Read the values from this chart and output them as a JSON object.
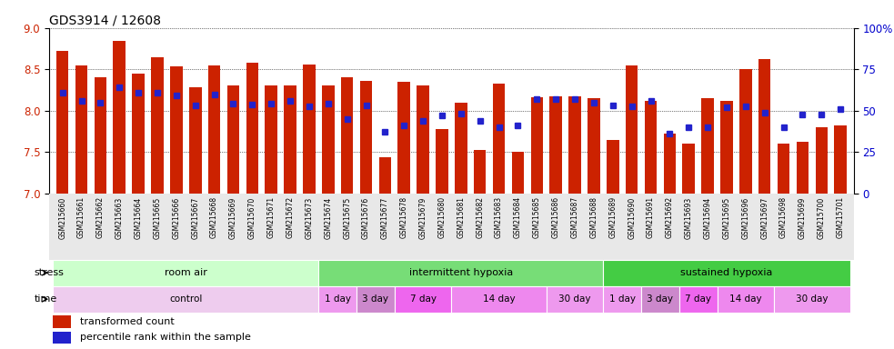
{
  "title": "GDS3914 / 12608",
  "samples": [
    "GSM215660",
    "GSM215661",
    "GSM215662",
    "GSM215663",
    "GSM215664",
    "GSM215665",
    "GSM215666",
    "GSM215667",
    "GSM215668",
    "GSM215669",
    "GSM215670",
    "GSM215671",
    "GSM215672",
    "GSM215673",
    "GSM215674",
    "GSM215675",
    "GSM215676",
    "GSM215677",
    "GSM215678",
    "GSM215679",
    "GSM215680",
    "GSM215681",
    "GSM215682",
    "GSM215683",
    "GSM215684",
    "GSM215685",
    "GSM215686",
    "GSM215687",
    "GSM215688",
    "GSM215689",
    "GSM215690",
    "GSM215691",
    "GSM215692",
    "GSM215693",
    "GSM215694",
    "GSM215695",
    "GSM215696",
    "GSM215697",
    "GSM215698",
    "GSM215699",
    "GSM215700",
    "GSM215701"
  ],
  "bar_values": [
    8.72,
    8.55,
    8.4,
    8.84,
    8.45,
    8.65,
    8.53,
    8.28,
    8.55,
    8.3,
    8.58,
    8.31,
    8.31,
    8.56,
    8.3,
    8.4,
    8.36,
    7.44,
    8.35,
    8.3,
    7.78,
    8.1,
    7.52,
    8.33,
    7.5,
    8.16,
    8.17,
    8.17,
    8.15,
    7.65,
    8.55,
    8.12,
    7.72,
    7.6,
    8.15,
    8.12,
    8.5,
    8.62,
    7.6,
    7.62,
    7.8,
    7.82
  ],
  "percentile_values": [
    8.22,
    8.12,
    8.1,
    8.28,
    8.22,
    8.22,
    8.18,
    8.06,
    8.2,
    8.08,
    8.07,
    8.08,
    8.12,
    8.05,
    8.08,
    7.9,
    8.06,
    7.74,
    7.82,
    7.88,
    7.94,
    7.96,
    7.88,
    7.8,
    7.82,
    8.14,
    8.14,
    8.14,
    8.1,
    8.06,
    8.05,
    8.12,
    7.72,
    7.8,
    7.8,
    8.04,
    8.05,
    7.98,
    7.8,
    7.95,
    7.95,
    8.02
  ],
  "ylim_left": [
    7.0,
    9.0
  ],
  "ylim_right": [
    0,
    100
  ],
  "yticks_left": [
    7.0,
    7.5,
    8.0,
    8.5,
    9.0
  ],
  "yticks_right": [
    0,
    25,
    50,
    75,
    100
  ],
  "ytick_labels_right": [
    "0",
    "25",
    "50",
    "75",
    "100%"
  ],
  "bar_color": "#cc2200",
  "dot_color": "#2222cc",
  "bar_bottom": 7.0,
  "stress_groups": [
    {
      "label": "room air",
      "start": 0,
      "end": 14,
      "color": "#ccffcc"
    },
    {
      "label": "intermittent hypoxia",
      "start": 14,
      "end": 29,
      "color": "#77dd77"
    },
    {
      "label": "sustained hypoxia",
      "start": 29,
      "end": 42,
      "color": "#44cc44"
    }
  ],
  "time_groups": [
    {
      "label": "control",
      "start": 0,
      "end": 14,
      "color": "#eeccee"
    },
    {
      "label": "1 day",
      "start": 14,
      "end": 16,
      "color": "#ee99ee"
    },
    {
      "label": "3 day",
      "start": 16,
      "end": 18,
      "color": "#cc88cc"
    },
    {
      "label": "7 day",
      "start": 18,
      "end": 21,
      "color": "#ee66ee"
    },
    {
      "label": "14 day",
      "start": 21,
      "end": 26,
      "color": "#ee88ee"
    },
    {
      "label": "30 day",
      "start": 26,
      "end": 29,
      "color": "#ee99ee"
    },
    {
      "label": "1 day",
      "start": 29,
      "end": 31,
      "color": "#ee99ee"
    },
    {
      "label": "3 day",
      "start": 31,
      "end": 33,
      "color": "#cc88cc"
    },
    {
      "label": "7 day",
      "start": 33,
      "end": 35,
      "color": "#ee66ee"
    },
    {
      "label": "14 day",
      "start": 35,
      "end": 38,
      "color": "#ee88ee"
    },
    {
      "label": "30 day",
      "start": 38,
      "end": 42,
      "color": "#ee99ee"
    }
  ],
  "label_color_left": "#cc2200",
  "label_color_right": "#0000cc",
  "xlabel_bg": "#dddddd",
  "stress_label": "stress",
  "time_label": "time"
}
